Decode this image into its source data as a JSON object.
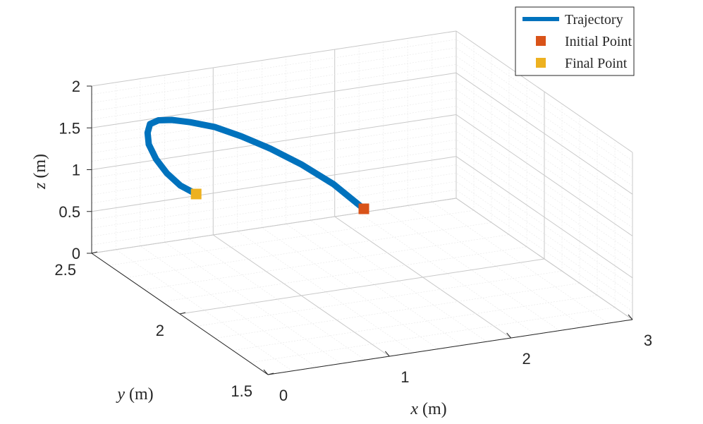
{
  "chart_data": {
    "type": "line3d",
    "title": "",
    "xlabel": {
      "var": "x",
      "unit": " (m)"
    },
    "ylabel": {
      "var": "y",
      "unit": " (m)"
    },
    "zlabel": {
      "var": "z",
      "unit": " (m)"
    },
    "xlim": [
      0,
      3
    ],
    "ylim": [
      1.5,
      2.5
    ],
    "zlim": [
      0,
      2
    ],
    "xticks": [
      {
        "v": 0,
        "label": "0"
      },
      {
        "v": 1,
        "label": "1"
      },
      {
        "v": 2,
        "label": "2"
      },
      {
        "v": 3,
        "label": "3"
      }
    ],
    "yticks": [
      {
        "v": 1.5,
        "label": "1.5"
      },
      {
        "v": 2,
        "label": "2"
      },
      {
        "v": 2.5,
        "label": "2.5"
      }
    ],
    "zticks": [
      {
        "v": 0,
        "label": "0"
      },
      {
        "v": 0.5,
        "label": "0.5"
      },
      {
        "v": 1,
        "label": "1"
      },
      {
        "v": 1.5,
        "label": "1.5"
      },
      {
        "v": 2,
        "label": "2"
      }
    ],
    "grid": true,
    "minor_grid": true,
    "legend_position": "top-right",
    "series": [
      {
        "name": "Trajectory",
        "color": "#0072BD",
        "x": [
          2.24,
          1.99,
          1.73,
          1.47,
          1.23,
          1.01,
          0.81,
          0.66,
          0.55,
          0.48,
          0.46,
          0.47,
          0.53,
          0.62,
          0.73,
          0.86
        ],
        "y": [
          2.5,
          2.5,
          2.5,
          2.5,
          2.5,
          2.5,
          2.5,
          2.5,
          2.5,
          2.5,
          2.5,
          2.5,
          2.5,
          2.5,
          2.5,
          2.5
        ],
        "z": [
          0.04,
          0.39,
          0.68,
          0.93,
          1.13,
          1.29,
          1.39,
          1.45,
          1.47,
          1.44,
          1.34,
          1.2,
          1.01,
          0.82,
          0.65,
          0.52
        ]
      },
      {
        "name": "Initial Point",
        "color": "#D95319",
        "x": [
          2.24
        ],
        "y": [
          2.5
        ],
        "z": [
          0.04
        ]
      },
      {
        "name": "Final Point",
        "color": "#EDB120",
        "x": [
          0.86
        ],
        "y": [
          2.5
        ],
        "z": [
          0.52
        ]
      }
    ]
  }
}
